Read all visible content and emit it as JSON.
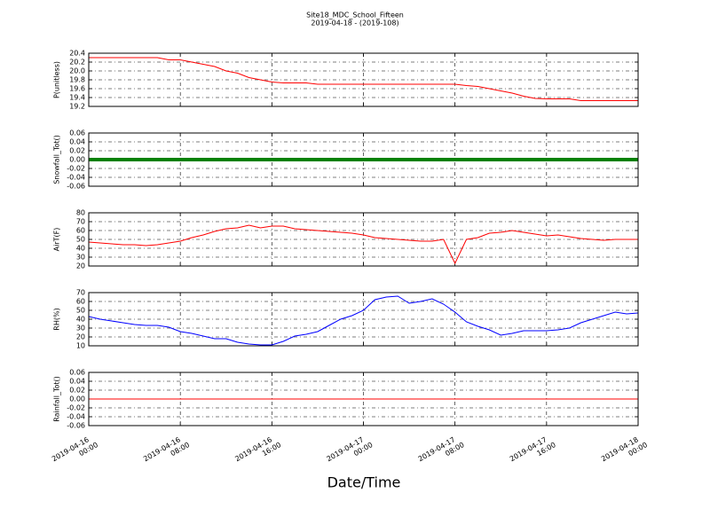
{
  "title": "Site18_MDC_School_Fifteen",
  "subtitle": "2019-04-18 - (2019-108)",
  "xlabel": "Date/Time",
  "x": [
    "2019-04-16 00:00",
    "2019-04-16 01:00",
    "2019-04-16 02:00",
    "2019-04-16 03:00",
    "2019-04-16 04:00",
    "2019-04-16 05:00",
    "2019-04-16 06:00",
    "2019-04-16 07:00",
    "2019-04-16 08:00",
    "2019-04-16 09:00",
    "2019-04-16 10:00",
    "2019-04-16 11:00",
    "2019-04-16 12:00",
    "2019-04-16 13:00",
    "2019-04-16 14:00",
    "2019-04-16 15:00",
    "2019-04-16 16:00",
    "2019-04-16 17:00",
    "2019-04-16 18:00",
    "2019-04-16 19:00",
    "2019-04-16 20:00",
    "2019-04-16 21:00",
    "2019-04-16 22:00",
    "2019-04-16 23:00",
    "2019-04-17 00:00",
    "2019-04-17 01:00",
    "2019-04-17 02:00",
    "2019-04-17 03:00",
    "2019-04-17 04:00",
    "2019-04-17 05:00",
    "2019-04-17 06:00",
    "2019-04-17 07:00",
    "2019-04-17 08:00",
    "2019-04-17 09:00",
    "2019-04-17 10:00",
    "2019-04-17 11:00",
    "2019-04-17 12:00",
    "2019-04-17 13:00",
    "2019-04-17 14:00",
    "2019-04-17 15:00",
    "2019-04-17 16:00",
    "2019-04-17 17:00",
    "2019-04-17 18:00",
    "2019-04-17 19:00",
    "2019-04-17 20:00",
    "2019-04-17 21:00",
    "2019-04-17 22:00",
    "2019-04-17 23:00",
    "2019-04-18 00:00"
  ],
  "xlim": [
    "2019-04-16 00:00",
    "2019-04-18 00:00"
  ],
  "xticks": [
    {
      "value": "2019-04-16 00:00",
      "label": [
        "2019-04-16",
        "00:00"
      ]
    },
    {
      "value": "2019-04-16 08:00",
      "label": [
        "2019-04-16",
        "08:00"
      ]
    },
    {
      "value": "2019-04-16 16:00",
      "label": [
        "2019-04-16",
        "16:00"
      ]
    },
    {
      "value": "2019-04-17 00:00",
      "label": [
        "2019-04-17",
        "00:00"
      ]
    },
    {
      "value": "2019-04-17 08:00",
      "label": [
        "2019-04-17",
        "08:00"
      ]
    },
    {
      "value": "2019-04-17 16:00",
      "label": [
        "2019-04-17",
        "16:00"
      ]
    },
    {
      "value": "2019-04-18 00:00",
      "label": [
        "2019-04-18",
        "00:00"
      ]
    }
  ],
  "chart_data": [
    {
      "type": "line",
      "ylabel": "P(unitless)",
      "grid": true,
      "ylim": [
        19.2,
        20.4
      ],
      "yticks": [
        19.2,
        19.4,
        19.6,
        19.8,
        {
          "value": 20,
          "label": "20.0"
        },
        20.2,
        20.4
      ],
      "series": [
        {
          "color": "#ff0000",
          "linewidth": 1,
          "values": [
            20.3,
            20.3,
            20.3,
            20.3,
            20.3,
            20.3,
            20.3,
            20.25,
            20.25,
            20.2,
            20.15,
            20.1,
            20.0,
            19.95,
            19.85,
            19.8,
            19.75,
            19.73,
            19.73,
            19.73,
            19.7,
            19.7,
            19.7,
            19.7,
            19.7,
            19.7,
            19.7,
            19.7,
            19.7,
            19.7,
            19.7,
            19.7,
            19.7,
            19.67,
            19.65,
            19.6,
            19.55,
            19.5,
            19.43,
            19.38,
            19.37,
            19.37,
            19.37,
            19.33,
            19.33,
            19.33,
            19.33,
            19.33,
            19.33
          ]
        }
      ]
    },
    {
      "type": "line",
      "ylabel": "Snowfall_Tot()",
      "grid": true,
      "ylim": [
        -0.06,
        0.06
      ],
      "yticks": [
        -0.06,
        -0.04,
        -0.02,
        {
          "value": 0,
          "label": "0.00"
        },
        0.02,
        0.04,
        0.06
      ],
      "series": [
        {
          "color": "#008000",
          "linewidth": 4,
          "values": [
            0,
            0,
            0,
            0,
            0,
            0,
            0,
            0,
            0,
            0,
            0,
            0,
            0,
            0,
            0,
            0,
            0,
            0,
            0,
            0,
            0,
            0,
            0,
            0,
            0,
            0,
            0,
            0,
            0,
            0,
            0,
            0,
            0,
            0,
            0,
            0,
            0,
            0,
            0,
            0,
            0,
            0,
            0,
            0,
            0,
            0,
            0,
            0,
            0
          ]
        }
      ]
    },
    {
      "type": "line",
      "ylabel": "AirT(F)",
      "grid": true,
      "ylim": [
        20,
        80
      ],
      "yticks": [
        20,
        30,
        40,
        50,
        60,
        70,
        80
      ],
      "series": [
        {
          "color": "#ff0000",
          "linewidth": 1,
          "values": [
            47,
            46,
            45,
            44,
            44,
            43,
            44,
            46,
            48,
            52,
            55,
            59,
            62,
            63,
            66,
            63,
            65,
            65,
            62,
            61,
            60,
            59,
            58,
            57,
            55,
            52,
            51,
            50,
            49,
            48,
            48,
            50,
            23,
            50,
            52,
            57,
            58,
            60,
            58,
            56,
            54,
            55,
            53,
            51,
            50,
            49,
            50,
            50,
            50
          ]
        }
      ]
    },
    {
      "type": "line",
      "ylabel": "RH(%)",
      "grid": true,
      "ylim": [
        10,
        70
      ],
      "yticks": [
        10,
        20,
        30,
        40,
        50,
        60,
        70
      ],
      "series": [
        {
          "color": "#0000ff",
          "linewidth": 1,
          "values": [
            43,
            40,
            38,
            36,
            34,
            33,
            33,
            31,
            26,
            24,
            21,
            18,
            18,
            14,
            12,
            11,
            11,
            15,
            21,
            23,
            26,
            33,
            40,
            44,
            50,
            62,
            65,
            66,
            58,
            60,
            63,
            57,
            48,
            37,
            32,
            28,
            22,
            24,
            27,
            27,
            27,
            28,
            30,
            36,
            40,
            44,
            48,
            46,
            47
          ]
        }
      ]
    },
    {
      "type": "line",
      "ylabel": "Rainfall_Tot()",
      "grid": true,
      "ylim": [
        -0.06,
        0.06
      ],
      "yticks": [
        -0.06,
        -0.04,
        -0.02,
        {
          "value": 0,
          "label": "0.00"
        },
        0.02,
        0.04,
        0.06
      ],
      "series": [
        {
          "color": "#ff0000",
          "linewidth": 1,
          "values": [
            0,
            0,
            0,
            0,
            0,
            0,
            0,
            0,
            0,
            0,
            0,
            0,
            0,
            0,
            0,
            0,
            0,
            0,
            0,
            0,
            0,
            0,
            0,
            0,
            0,
            0,
            0,
            0,
            0,
            0,
            0,
            0,
            0,
            0,
            0,
            0,
            0,
            0,
            0,
            0,
            0,
            0,
            0,
            0,
            0,
            0,
            0,
            0,
            0
          ]
        }
      ]
    }
  ]
}
